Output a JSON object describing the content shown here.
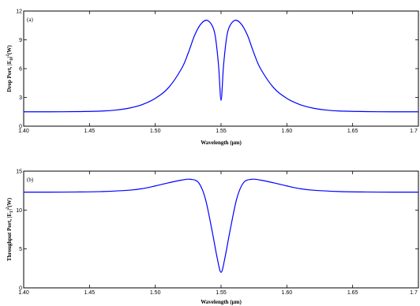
{
  "chart_data": [
    {
      "type": "line",
      "panel_tag": "(a)",
      "xlabel": "Wavelength (μm)",
      "ylabel": "Drop Port, |E",
      "ylabel_sub": "D",
      "ylabel_tail": "|",
      "ylabel_sup": "2",
      "ylabel_unit": "(W)",
      "xlim": [
        1.4,
        1.7
      ],
      "ylim": [
        0,
        12
      ],
      "x_ticks": [
        1.4,
        1.45,
        1.5,
        1.55,
        1.6,
        1.65,
        1.7
      ],
      "x_tick_labels": [
        "1.40",
        "1.45",
        "1.50",
        "1.55",
        "1.60",
        "1.65",
        "1.7"
      ],
      "y_ticks": [
        0,
        3,
        6,
        9,
        12
      ],
      "y_tick_labels": [
        "0",
        "3",
        "6",
        "9",
        "12"
      ],
      "grid": false,
      "color": "#0000ff",
      "series": [
        {
          "x": [
            1.4,
            1.42,
            1.44,
            1.46,
            1.47,
            1.48,
            1.49,
            1.5,
            1.51,
            1.52,
            1.525,
            1.53,
            1.535,
            1.54,
            1.545,
            1.548,
            1.55,
            1.552,
            1.555,
            1.56,
            1.565,
            1.57,
            1.575,
            1.58,
            1.59,
            1.6,
            1.61,
            1.62,
            1.63,
            1.64,
            1.66,
            1.68,
            1.7
          ],
          "y": [
            1.5,
            1.5,
            1.52,
            1.58,
            1.68,
            1.88,
            2.25,
            2.9,
            4.0,
            6.0,
            7.6,
            9.5,
            10.7,
            11.0,
            9.8,
            6.5,
            2.7,
            6.5,
            9.8,
            11.0,
            10.7,
            9.5,
            7.6,
            6.0,
            4.0,
            2.9,
            2.25,
            1.88,
            1.68,
            1.58,
            1.52,
            1.5,
            1.5
          ]
        }
      ]
    },
    {
      "type": "line",
      "panel_tag": "(b)",
      "xlabel": "Wavelength (μm)",
      "ylabel": "Throughput Port, |E",
      "ylabel_sub": "T",
      "ylabel_tail": "|",
      "ylabel_sup": "2",
      "ylabel_unit": "(W)",
      "xlim": [
        1.4,
        1.7
      ],
      "ylim": [
        0,
        15
      ],
      "x_ticks": [
        1.4,
        1.45,
        1.5,
        1.55,
        1.6,
        1.65,
        1.7
      ],
      "x_tick_labels": [
        "1.40",
        "1.45",
        "1.50",
        "1.55",
        "1.60",
        "1.65",
        "1.7"
      ],
      "y_ticks": [
        0,
        5,
        10,
        15
      ],
      "y_tick_labels": [
        "0",
        "5",
        "10",
        "15"
      ],
      "grid": false,
      "color": "#0000ff",
      "series": [
        {
          "x": [
            1.4,
            1.42,
            1.44,
            1.46,
            1.48,
            1.49,
            1.5,
            1.51,
            1.52,
            1.527,
            1.533,
            1.538,
            1.543,
            1.547,
            1.55,
            1.553,
            1.557,
            1.562,
            1.567,
            1.573,
            1.58,
            1.59,
            1.6,
            1.61,
            1.62,
            1.64,
            1.66,
            1.68,
            1.7
          ],
          "y": [
            12.3,
            12.3,
            12.32,
            12.38,
            12.55,
            12.75,
            13.1,
            13.5,
            13.85,
            13.95,
            13.5,
            11.5,
            7.5,
            3.9,
            2.0,
            3.9,
            7.5,
            11.5,
            13.5,
            13.95,
            13.85,
            13.5,
            13.1,
            12.75,
            12.55,
            12.38,
            12.32,
            12.3,
            12.3
          ]
        }
      ]
    }
  ]
}
